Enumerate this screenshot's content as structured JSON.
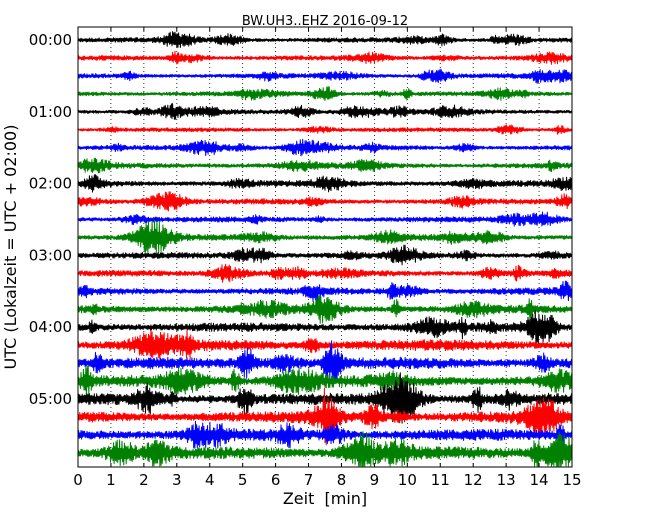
{
  "chart_data": {
    "type": "line",
    "title": "BW.UH3..EHZ 2016-09-12",
    "xlabel": "Zeit  [min]",
    "ylabel": "UTC (Lokalzeit = UTC + 02:00)",
    "xlim": [
      0,
      15
    ],
    "x_ticks": [
      "0",
      "1",
      "2",
      "3",
      "4",
      "5",
      "6",
      "7",
      "8",
      "9",
      "10",
      "11",
      "12",
      "13",
      "14",
      "15"
    ],
    "y_tick_labels": [
      "00:00",
      "01:00",
      "02:00",
      "03:00",
      "04:00",
      "05:00"
    ],
    "trace_interval_min": 15,
    "trace_colors": [
      "#000000",
      "#ff0000",
      "#0000ff",
      "#008000"
    ],
    "grid": "vertical dotted lines at each minute",
    "series": [
      {
        "start": "00:00",
        "color": "#000000",
        "amplitude": 0.35
      },
      {
        "start": "00:15",
        "color": "#ff0000",
        "amplitude": 0.35
      },
      {
        "start": "00:30",
        "color": "#0000ff",
        "amplitude": 0.35
      },
      {
        "start": "00:45",
        "color": "#008000",
        "amplitude": 0.35
      },
      {
        "start": "01:00",
        "color": "#000000",
        "amplitude": 0.35
      },
      {
        "start": "01:15",
        "color": "#ff0000",
        "amplitude": 0.3
      },
      {
        "start": "01:30",
        "color": "#0000ff",
        "amplitude": 0.35
      },
      {
        "start": "01:45",
        "color": "#008000",
        "amplitude": 0.4
      },
      {
        "start": "02:00",
        "color": "#000000",
        "amplitude": 0.45
      },
      {
        "start": "02:15",
        "color": "#ff0000",
        "amplitude": 0.4
      },
      {
        "start": "02:30",
        "color": "#0000ff",
        "amplitude": 0.4
      },
      {
        "start": "02:45",
        "color": "#008000",
        "amplitude": 0.45
      },
      {
        "start": "03:00",
        "color": "#000000",
        "amplitude": 0.45
      },
      {
        "start": "03:15",
        "color": "#ff0000",
        "amplitude": 0.45
      },
      {
        "start": "03:30",
        "color": "#0000ff",
        "amplitude": 0.5
      },
      {
        "start": "03:45",
        "color": "#008000",
        "amplitude": 0.6
      },
      {
        "start": "04:00",
        "color": "#000000",
        "amplitude": 0.65
      },
      {
        "start": "04:15",
        "color": "#ff0000",
        "amplitude": 0.8
      },
      {
        "start": "04:30",
        "color": "#0000ff",
        "amplitude": 0.85
      },
      {
        "start": "04:45",
        "color": "#008000",
        "amplitude": 0.85
      },
      {
        "start": "05:00",
        "color": "#000000",
        "amplitude": 0.85
      },
      {
        "start": "05:15",
        "color": "#ff0000",
        "amplitude": 0.8
      },
      {
        "start": "05:30",
        "color": "#0000ff",
        "amplitude": 0.85
      },
      {
        "start": "05:45",
        "color": "#008000",
        "amplitude": 0.9
      }
    ]
  }
}
